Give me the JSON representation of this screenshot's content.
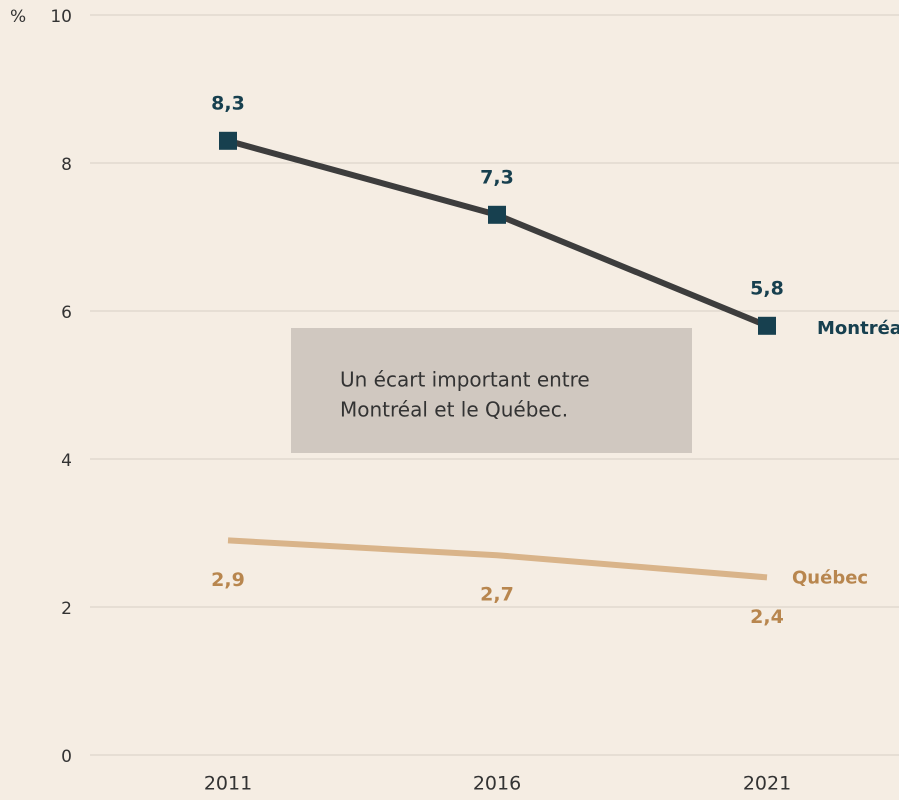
{
  "chart_data": {
    "type": "line",
    "ylabel": "%",
    "categories": [
      "2011",
      "2016",
      "2021"
    ],
    "series": [
      {
        "name": "Montréal",
        "color": "#17404f",
        "line_color": "#3d3d3d",
        "values": [
          8.3,
          7.3,
          5.8
        ],
        "value_labels": [
          "8,3",
          "7,3",
          "5,8"
        ]
      },
      {
        "name": "Québec",
        "color": "#b8864e",
        "line_color": "#d9b48a",
        "values": [
          2.9,
          2.7,
          2.4
        ],
        "value_labels": [
          "2,9",
          "2,7",
          "2,4"
        ]
      }
    ],
    "ylim": [
      0,
      10
    ],
    "yticks": [
      0,
      2,
      4,
      6,
      8,
      10
    ],
    "grid": true,
    "annotation": [
      "Un écart important entre",
      "Montréal et le Québec."
    ]
  }
}
